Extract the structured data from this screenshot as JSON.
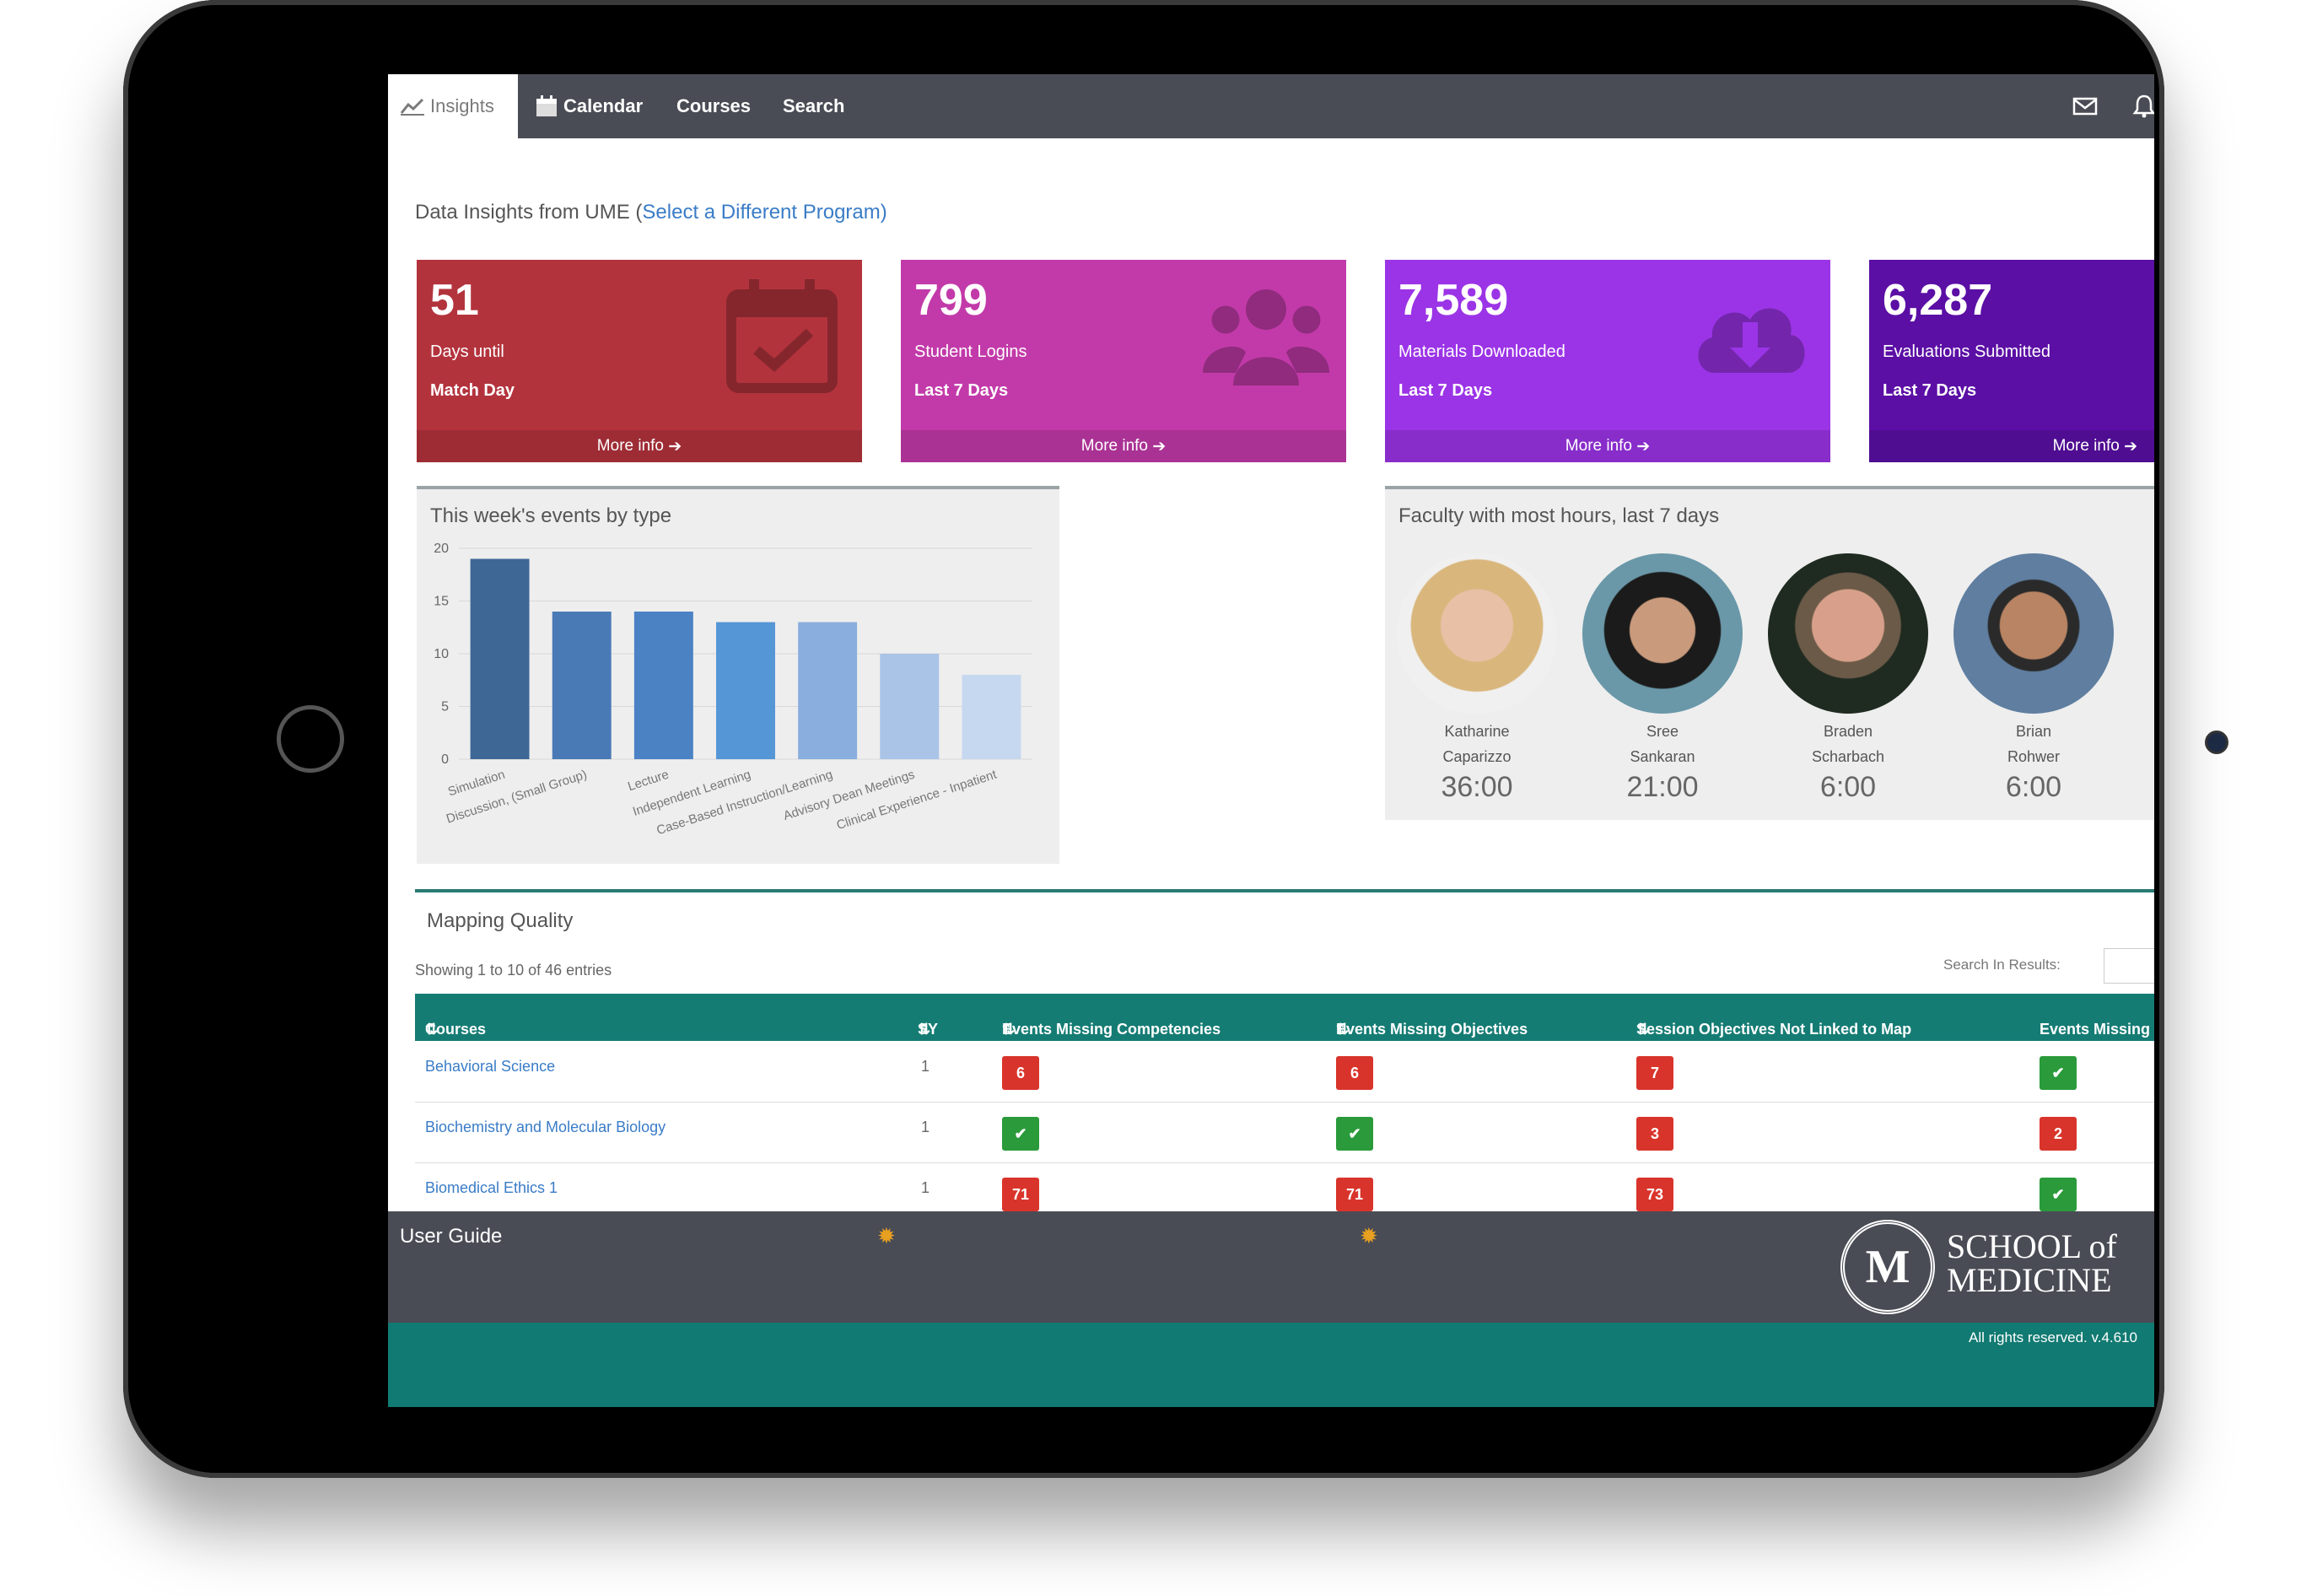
{
  "nav": {
    "tabs": [
      {
        "label": "Insights",
        "icon": "line-chart-icon"
      },
      {
        "label": "Calendar",
        "icon": "calendar-icon"
      },
      {
        "label": "Courses"
      },
      {
        "label": "Search"
      }
    ],
    "right_icons": [
      "mail-icon",
      "bell-icon"
    ]
  },
  "headline": {
    "text": "Data Insights from UME (",
    "link": "Select a Different Program",
    "suffix": ")"
  },
  "cards": [
    {
      "value": "51",
      "line1": "Days until",
      "line2": "Match Day",
      "more": "More info",
      "color": "#b3333d",
      "icon": "calendar-check-icon"
    },
    {
      "value": "799",
      "line1": "Student Logins",
      "line2": "Last 7 Days",
      "more": "More info",
      "color": "#c23aa9",
      "icon": "users-icon"
    },
    {
      "value": "7,589",
      "line1": "Materials Downloaded",
      "line2": "Last 7 Days",
      "more": "More info",
      "color": "#9b34e6",
      "icon": "cloud-download-icon"
    },
    {
      "value": "6,287",
      "line1": "Evaluations Submitted",
      "line2": "Last 7 Days",
      "more": "More info",
      "color": "#5b0fa5",
      "icon": "clipboard-icon"
    }
  ],
  "events_panel": {
    "title": "This week's events by type"
  },
  "chart_data": {
    "type": "bar",
    "categories": [
      "Simulation",
      "Discussion, (Small Group)",
      "Lecture",
      "Independent Learning",
      "Case-Based Instruction/Learning",
      "Advisory Dean Meetings",
      "Clinical Experience - Inpatient"
    ],
    "values": [
      19,
      14,
      14,
      13,
      13,
      10,
      8
    ],
    "colors": [
      "#3e6796",
      "#4a7ab5",
      "#4a82c4",
      "#5596d6",
      "#8aaede",
      "#a9c4e7",
      "#c6d8ef"
    ],
    "yticks": [
      0,
      5,
      10,
      15,
      20
    ],
    "ylim": [
      0,
      20
    ],
    "grid": true
  },
  "faculty_panel": {
    "title": "Faculty with most hours, last 7 days",
    "people": [
      {
        "first": "Katharine",
        "last": "Caparizzo",
        "hours": "36:00"
      },
      {
        "first": "Sree",
        "last": "Sankaran",
        "hours": "21:00"
      },
      {
        "first": "Braden",
        "last": "Scharbach",
        "hours": "6:00"
      },
      {
        "first": "Brian",
        "last": "Rohwer",
        "hours": "6:00"
      }
    ]
  },
  "mapping": {
    "title": "Mapping Quality",
    "showing": "Showing 1 to 10 of 46 entries",
    "search_label": "Search In Results:",
    "columns": [
      "Courses",
      "SY",
      "Events Missing Competencies",
      "Events Missing Objectives",
      "Session Objectives Not Linked to Map",
      "Events Missing"
    ],
    "rows": [
      {
        "course": "Behavioral Science",
        "sy": "1",
        "c1": "6",
        "c2": "6",
        "c3": "7",
        "c4": "ok"
      },
      {
        "course": "Biochemistry and Molecular Biology",
        "sy": "1",
        "c1": "ok",
        "c2": "ok",
        "c3": "3",
        "c4": "2"
      },
      {
        "course": "Biomedical Ethics 1",
        "sy": "1",
        "c1": "71",
        "c2": "71",
        "c3": "73",
        "c4": "ok"
      }
    ]
  },
  "footer": {
    "user_guide": "User Guide",
    "school_line1": "SCHOOL of",
    "school_line2": "MEDICINE",
    "logo_letter": "M",
    "rights": "All rights reserved. v.4.610"
  }
}
